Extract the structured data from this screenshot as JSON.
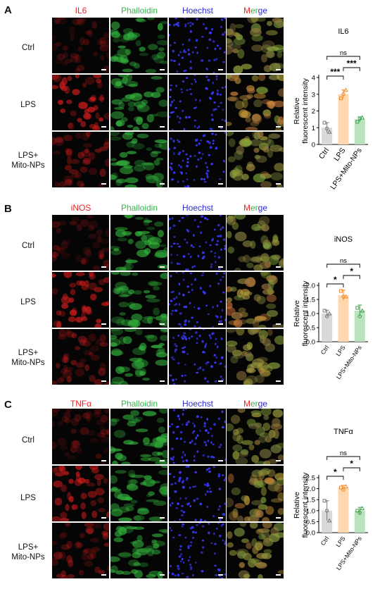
{
  "channels_template": [
    "Phalloidin",
    "Hoechst"
  ],
  "merge_label": {
    "part1": "M",
    "part2": "er",
    "part3": "ge"
  },
  "row_labels": {
    "ctrl": "Ctrl",
    "lps": "LPS",
    "lps_mito_line1": "LPS+",
    "lps_mito_line2": "Mito-NPs"
  },
  "panels": [
    {
      "letter": "A",
      "marker": "IL6",
      "phalloidin": "Phalloidin",
      "hoechst": "Hoechst"
    },
    {
      "letter": "B",
      "marker": "iNOS",
      "phalloidin": "Phalloidin",
      "hoechst": "Hoechst"
    },
    {
      "letter": "C",
      "marker": "TNFα",
      "phalloidin": "Phalloidin",
      "hoechst": "Hoechst"
    }
  ],
  "colors": {
    "red": "#e8262a",
    "green": "#2fb84b",
    "blue": "#2c2ccf",
    "ctrl_bar": "#d9d9d9",
    "lps_bar": "#ffd8b0",
    "mito_bar": "#b9e3bd",
    "ctrl_pt": "#7a7a7a",
    "lps_pt": "#f08a2c",
    "mito_pt": "#3aa64a"
  },
  "chart_data": [
    {
      "type": "bar",
      "title": "IL6",
      "ylabel_line1": "Relative",
      "ylabel_line2": "fluorescent intensity",
      "categories": [
        "Ctrl",
        "LPS",
        "LPS+Mito-NPs"
      ],
      "values": [
        1.0,
        3.0,
        1.5
      ],
      "errors": [
        0.3,
        0.25,
        0.15
      ],
      "points": [
        [
          1.3,
          0.95,
          0.75
        ],
        [
          2.75,
          3.0,
          3.25
        ],
        [
          1.35,
          1.55,
          1.6
        ]
      ],
      "ylim": [
        0,
        4
      ],
      "yticks": [
        "0",
        "1",
        "2",
        "3",
        "4"
      ],
      "sig": {
        "ctrl_lps": "***",
        "lps_mito": "***",
        "ctrl_mito": "ns"
      }
    },
    {
      "type": "bar",
      "title": "iNOS",
      "ylabel_line1": "Relative",
      "ylabel_line2": "fluorescent intensity",
      "categories": [
        "Ctrl",
        "LPS",
        "LPS+Mito-NPs"
      ],
      "values": [
        1.0,
        1.65,
        1.1
      ],
      "errors": [
        0.12,
        0.18,
        0.2
      ],
      "points": [
        [
          1.1,
          0.9,
          1.0
        ],
        [
          1.8,
          1.6,
          1.6
        ],
        [
          1.2,
          0.9,
          1.1
        ]
      ],
      "ylim": [
        0,
        2.0
      ],
      "yticks": [
        "0.0",
        "0.5",
        "1.0",
        "1.5",
        "2.0"
      ],
      "sig": {
        "ctrl_lps": "*",
        "lps_mito": "*",
        "ctrl_mito": "ns"
      }
    },
    {
      "type": "bar",
      "title": "TNFα",
      "ylabel_line1": "Relative",
      "ylabel_line2": "fluorescent intensity",
      "categories": [
        "Ctrl",
        "LPS",
        "LPS+Mito-NPs"
      ],
      "values": [
        1.0,
        2.05,
        1.0
      ],
      "errors": [
        0.45,
        0.1,
        0.15
      ],
      "points": [
        [
          1.45,
          1.0,
          0.55
        ],
        [
          2.05,
          1.95,
          2.1
        ],
        [
          1.0,
          0.9,
          1.1
        ]
      ],
      "ylim": [
        0,
        2.5
      ],
      "yticks": [
        "0.0",
        "0.5",
        "1.0",
        "1.5",
        "2.0",
        "2.5"
      ],
      "sig": {
        "ctrl_lps": "*",
        "lps_mito": "*",
        "ctrl_mito": "ns"
      }
    }
  ]
}
